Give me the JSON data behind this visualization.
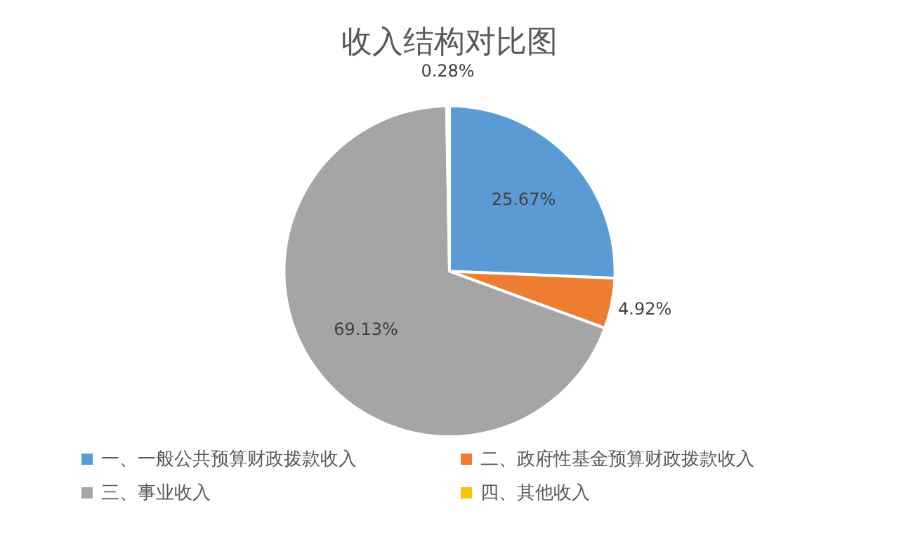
{
  "chart_data": {
    "type": "pie",
    "title": "收入结构对比图",
    "categories": [
      "一、一般公共预算财政拨款收入",
      "二、政府性基金预算财政拨款收入",
      "三、事业收入",
      "四、其他收入"
    ],
    "values": [
      25.67,
      4.92,
      69.13,
      0.28
    ],
    "colors": [
      "#5b9bd5",
      "#ed7d31",
      "#a5a5a5",
      "#ffc000"
    ],
    "value_labels": [
      "25.67%",
      "4.92%",
      "69.13%",
      "0.28%"
    ],
    "legend": "bottom"
  }
}
